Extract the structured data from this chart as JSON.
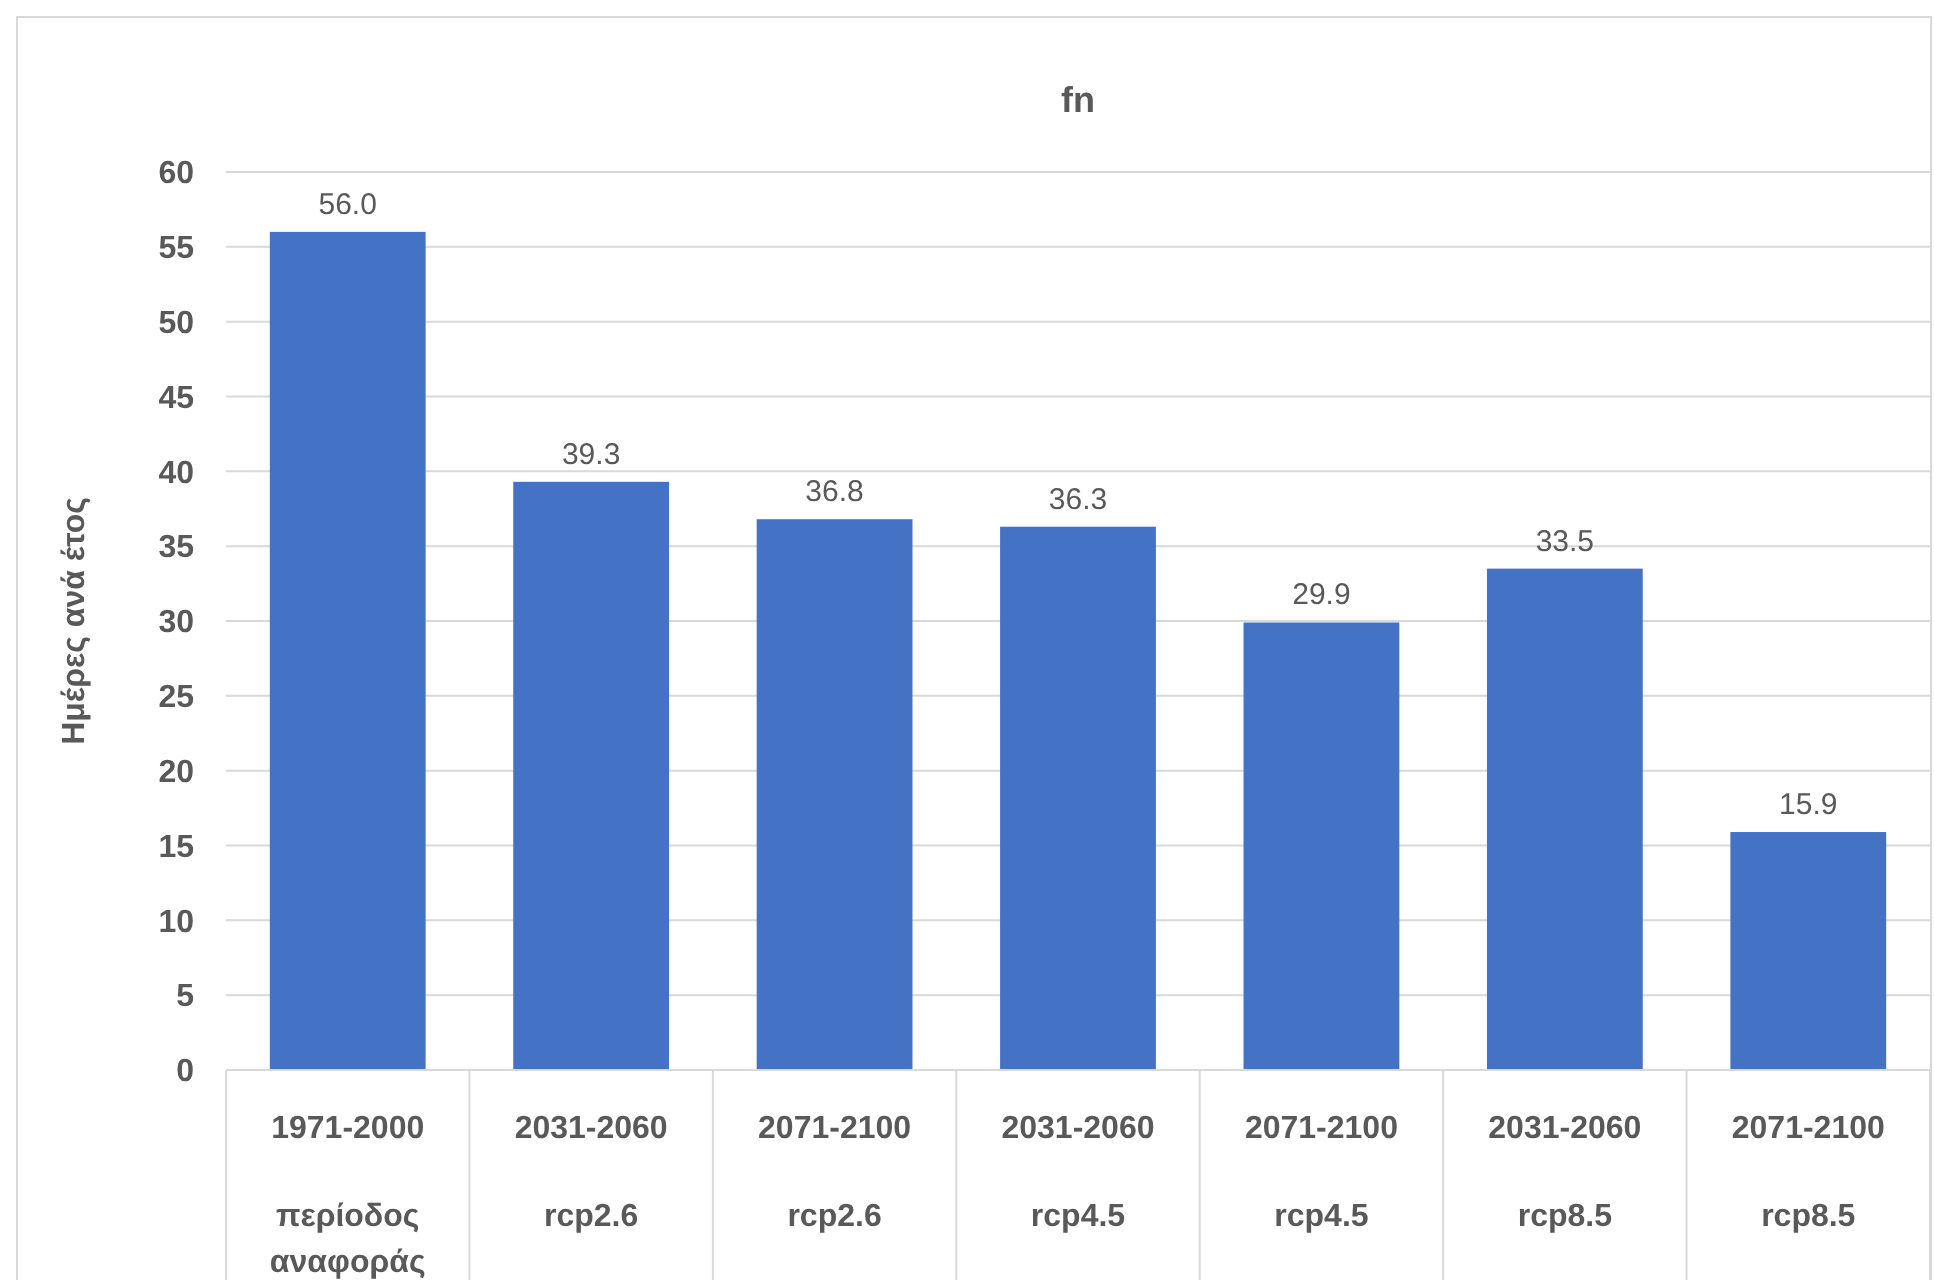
{
  "chart_data": {
    "type": "bar",
    "title": "fn",
    "ylabel": "Ημέρες ανά έτος",
    "categories": [
      "1971-2000\nπερίοδος αναφοράς",
      "2031-2060\nrcp2.6",
      "2071-2100\nrcp2.6",
      "2031-2060\nrcp4.5",
      "2071-2100\nrcp4.5",
      "2031-2060\nrcp8.5",
      "2071-2100\nrcp8.5"
    ],
    "values": [
      56.0,
      39.3,
      36.8,
      36.3,
      29.9,
      33.5,
      15.9
    ],
    "color": "#4472c4",
    "ylim": [
      0,
      60
    ],
    "yticks": [
      0,
      5,
      10,
      15,
      20,
      25,
      30,
      35,
      40,
      45,
      50,
      55,
      60
    ],
    "value_labels": [
      "56.0",
      "39.3",
      "36.8",
      "36.3",
      "29.9",
      "33.5",
      "15.9"
    ],
    "grid": "y"
  }
}
